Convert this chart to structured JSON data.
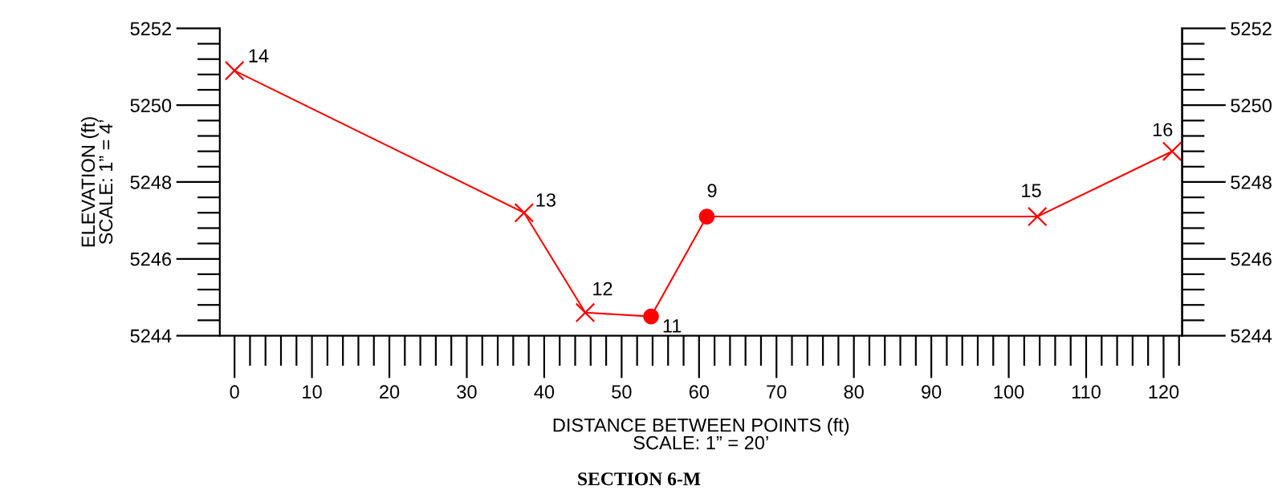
{
  "chart_data": {
    "type": "line",
    "title": "SECTION 6-M",
    "xlabel": "DISTANCE BETWEEN POINTS (ft)\nSCALE: 1” = 20’",
    "ylabel": "ELEVATION (ft)\nSCALE: 1” = 4’",
    "series": [
      {
        "type": "line",
        "color": "#ff0000",
        "line_style": "solid",
        "x": [
          0,
          37.4,
          45.3,
          53.8,
          61.0,
          103.7,
          121.1
        ],
        "values": [
          5250.9,
          5247.2,
          5244.6,
          5244.5,
          5247.1,
          5247.1,
          5248.8
        ]
      },
      {
        "type": "scatter",
        "color": "#ff0000",
        "marker": "cross",
        "x": [
          0,
          37.4,
          45.3,
          103.7,
          121.1
        ],
        "values": [
          5250.9,
          5247.2,
          5244.6,
          5247.1,
          5248.8
        ]
      },
      {
        "type": "scatter",
        "color": "#ff0000",
        "marker": "circle",
        "x": [
          53.8,
          61.0
        ],
        "values": [
          5244.5,
          5247.1
        ]
      }
    ],
    "annotations": [
      {
        "text": "14",
        "x": 0,
        "y": 5250.9
      },
      {
        "text": "13",
        "x": 37.4,
        "y": 5247.2
      },
      {
        "text": "12",
        "x": 45.3,
        "y": 5244.6
      },
      {
        "text": "11",
        "x": 53.8,
        "y": 5244.5
      },
      {
        "text": "9",
        "x": 61.0,
        "y": 5247.1
      },
      {
        "text": "15",
        "x": 103.7,
        "y": 5247.1
      },
      {
        "text": "16",
        "x": 121.1,
        "y": 5248.8
      }
    ],
    "xlim": [
      -1.9,
      122.4
    ],
    "xticks": [
      0,
      10,
      20,
      30,
      40,
      50,
      60,
      70,
      80,
      90,
      100,
      110,
      120
    ],
    "ylim": [
      5244,
      5252
    ],
    "yticks": [
      5244,
      5246,
      5248,
      5250,
      5252
    ],
    "y2lim": [
      5244,
      5252
    ],
    "y2ticks": [
      5244,
      5246,
      5248,
      5250,
      5252
    ],
    "grid": false,
    "legend": false
  }
}
